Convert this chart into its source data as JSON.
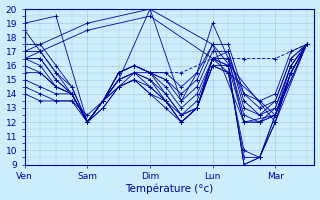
{
  "title": "Température (°c)",
  "background_color": "#cceeff",
  "grid_color": "#aaccdd",
  "line_color": "#0000aa",
  "x_labels": [
    "Ven",
    "Sam",
    "Dim",
    "Lun",
    "Mar"
  ],
  "x_ticks": [
    0,
    8,
    16,
    24,
    32
  ],
  "ylim": [
    9,
    20
  ],
  "xlim": [
    0,
    37
  ],
  "yticks": [
    9,
    10,
    11,
    12,
    13,
    14,
    15,
    16,
    17,
    18,
    19,
    20
  ],
  "series": [
    [
      0,
      18.5,
      2,
      17.0,
      4,
      15.5,
      6,
      14.0,
      8,
      12.0,
      10,
      13.5,
      12,
      15.0,
      14,
      15.5,
      16,
      15.5,
      18,
      14.0,
      20,
      12.5,
      22,
      13.0,
      24,
      16.5,
      26,
      16.0,
      28,
      9.0,
      30,
      9.5,
      32,
      12.0,
      34,
      15.5,
      36,
      17.5
    ],
    [
      0,
      17.5,
      2,
      17.5,
      4,
      16.0,
      6,
      14.5,
      8,
      12.0,
      10,
      13.5,
      12,
      15.0,
      14,
      15.5,
      16,
      15.0,
      18,
      13.5,
      20,
      12.0,
      22,
      13.0,
      24,
      16.5,
      26,
      16.0,
      28,
      9.0,
      30,
      9.5,
      32,
      12.0,
      34,
      15.5,
      36,
      17.5
    ],
    [
      0,
      17.0,
      2,
      17.0,
      4,
      15.5,
      6,
      14.5,
      8,
      12.0,
      10,
      13.5,
      12,
      14.5,
      14,
      15.0,
      16,
      14.5,
      18,
      13.5,
      20,
      12.0,
      22,
      13.0,
      24,
      16.0,
      26,
      15.5,
      28,
      9.5,
      30,
      9.5,
      32,
      12.5,
      34,
      16.0,
      36,
      17.5
    ],
    [
      0,
      16.5,
      2,
      16.5,
      4,
      15.0,
      6,
      14.0,
      8,
      12.0,
      10,
      13.5,
      12,
      14.5,
      14,
      15.0,
      16,
      14.0,
      18,
      13.0,
      20,
      12.0,
      22,
      13.0,
      24,
      16.0,
      26,
      15.5,
      28,
      10.0,
      30,
      9.5,
      32,
      12.5,
      34,
      15.5,
      36,
      17.5
    ],
    [
      0,
      16.5,
      2,
      16.5,
      4,
      15.0,
      6,
      14.0,
      8,
      12.0,
      10,
      13.0,
      12,
      14.5,
      14,
      15.0,
      16,
      14.0,
      18,
      13.5,
      20,
      12.0,
      22,
      13.0,
      24,
      16.0,
      26,
      16.0,
      28,
      12.0,
      30,
      12.0,
      32,
      12.5,
      34,
      15.5,
      36,
      17.5
    ],
    [
      0,
      16.5,
      2,
      16.0,
      4,
      14.5,
      6,
      14.0,
      8,
      12.0,
      10,
      13.0,
      12,
      14.5,
      14,
      15.5,
      16,
      14.5,
      18,
      13.5,
      20,
      12.5,
      22,
      13.0,
      24,
      16.5,
      26,
      16.5,
      28,
      12.0,
      30,
      12.0,
      32,
      12.5,
      34,
      15.5,
      36,
      17.5
    ],
    [
      0,
      16.0,
      2,
      15.5,
      4,
      14.5,
      6,
      14.0,
      8,
      12.0,
      10,
      13.5,
      12,
      15.0,
      14,
      15.5,
      16,
      15.0,
      18,
      14.0,
      20,
      12.5,
      22,
      13.5,
      24,
      16.5,
      26,
      16.5,
      28,
      12.5,
      30,
      12.0,
      32,
      13.0,
      34,
      16.0,
      36,
      17.5
    ],
    [
      0,
      15.5,
      2,
      15.5,
      4,
      14.5,
      6,
      14.0,
      8,
      12.0,
      10,
      13.5,
      12,
      15.5,
      14,
      16.0,
      16,
      15.5,
      18,
      14.5,
      20,
      13.0,
      22,
      14.0,
      24,
      16.5,
      26,
      17.0,
      28,
      13.0,
      30,
      12.5,
      32,
      13.0,
      34,
      16.0,
      36,
      17.5
    ],
    [
      0,
      15.0,
      2,
      14.5,
      4,
      14.0,
      6,
      14.0,
      8,
      12.0,
      10,
      13.5,
      12,
      15.5,
      14,
      16.0,
      16,
      15.5,
      18,
      15.0,
      20,
      13.5,
      22,
      14.5,
      24,
      17.0,
      26,
      17.0,
      28,
      13.5,
      30,
      12.5,
      32,
      13.5,
      34,
      16.5,
      36,
      17.5
    ],
    [
      0,
      14.5,
      2,
      14.0,
      4,
      13.5,
      6,
      13.5,
      8,
      12.0,
      10,
      13.5,
      12,
      15.5,
      14,
      16.0,
      16,
      15.5,
      18,
      15.0,
      20,
      14.0,
      22,
      15.0,
      24,
      17.5,
      26,
      17.5,
      28,
      14.0,
      30,
      13.0,
      32,
      13.5,
      34,
      16.5,
      36,
      17.5
    ],
    [
      0,
      14.0,
      2,
      13.5,
      4,
      13.5,
      6,
      13.5,
      8,
      12.5,
      10,
      13.5,
      12,
      15.5,
      14,
      16.0,
      16,
      15.5,
      18,
      15.5,
      20,
      14.5,
      22,
      15.5,
      24,
      19.0,
      26,
      16.5,
      28,
      14.0,
      30,
      13.5,
      32,
      14.0,
      34,
      17.0,
      36,
      17.5
    ],
    [
      0,
      19.0,
      4,
      19.5,
      8,
      12.0,
      12,
      15.0,
      16,
      20.0,
      20,
      13.5,
      24,
      17.5,
      28,
      12.0,
      32,
      12.5,
      36,
      17.5
    ],
    [
      0,
      17.0,
      8,
      19.0,
      16,
      20.0,
      24,
      17.5,
      32,
      12.0,
      36,
      17.5
    ],
    [
      0,
      16.5,
      8,
      18.5,
      16,
      19.5,
      24,
      16.5,
      32,
      12.5,
      36,
      17.5
    ]
  ],
  "dashed_series": [
    [
      16,
      15.5,
      20,
      15.5,
      24,
      16.5,
      28,
      16.5,
      32,
      16.5,
      36,
      17.5
    ]
  ],
  "figsize": [
    3.2,
    2.0
  ],
  "dpi": 100
}
